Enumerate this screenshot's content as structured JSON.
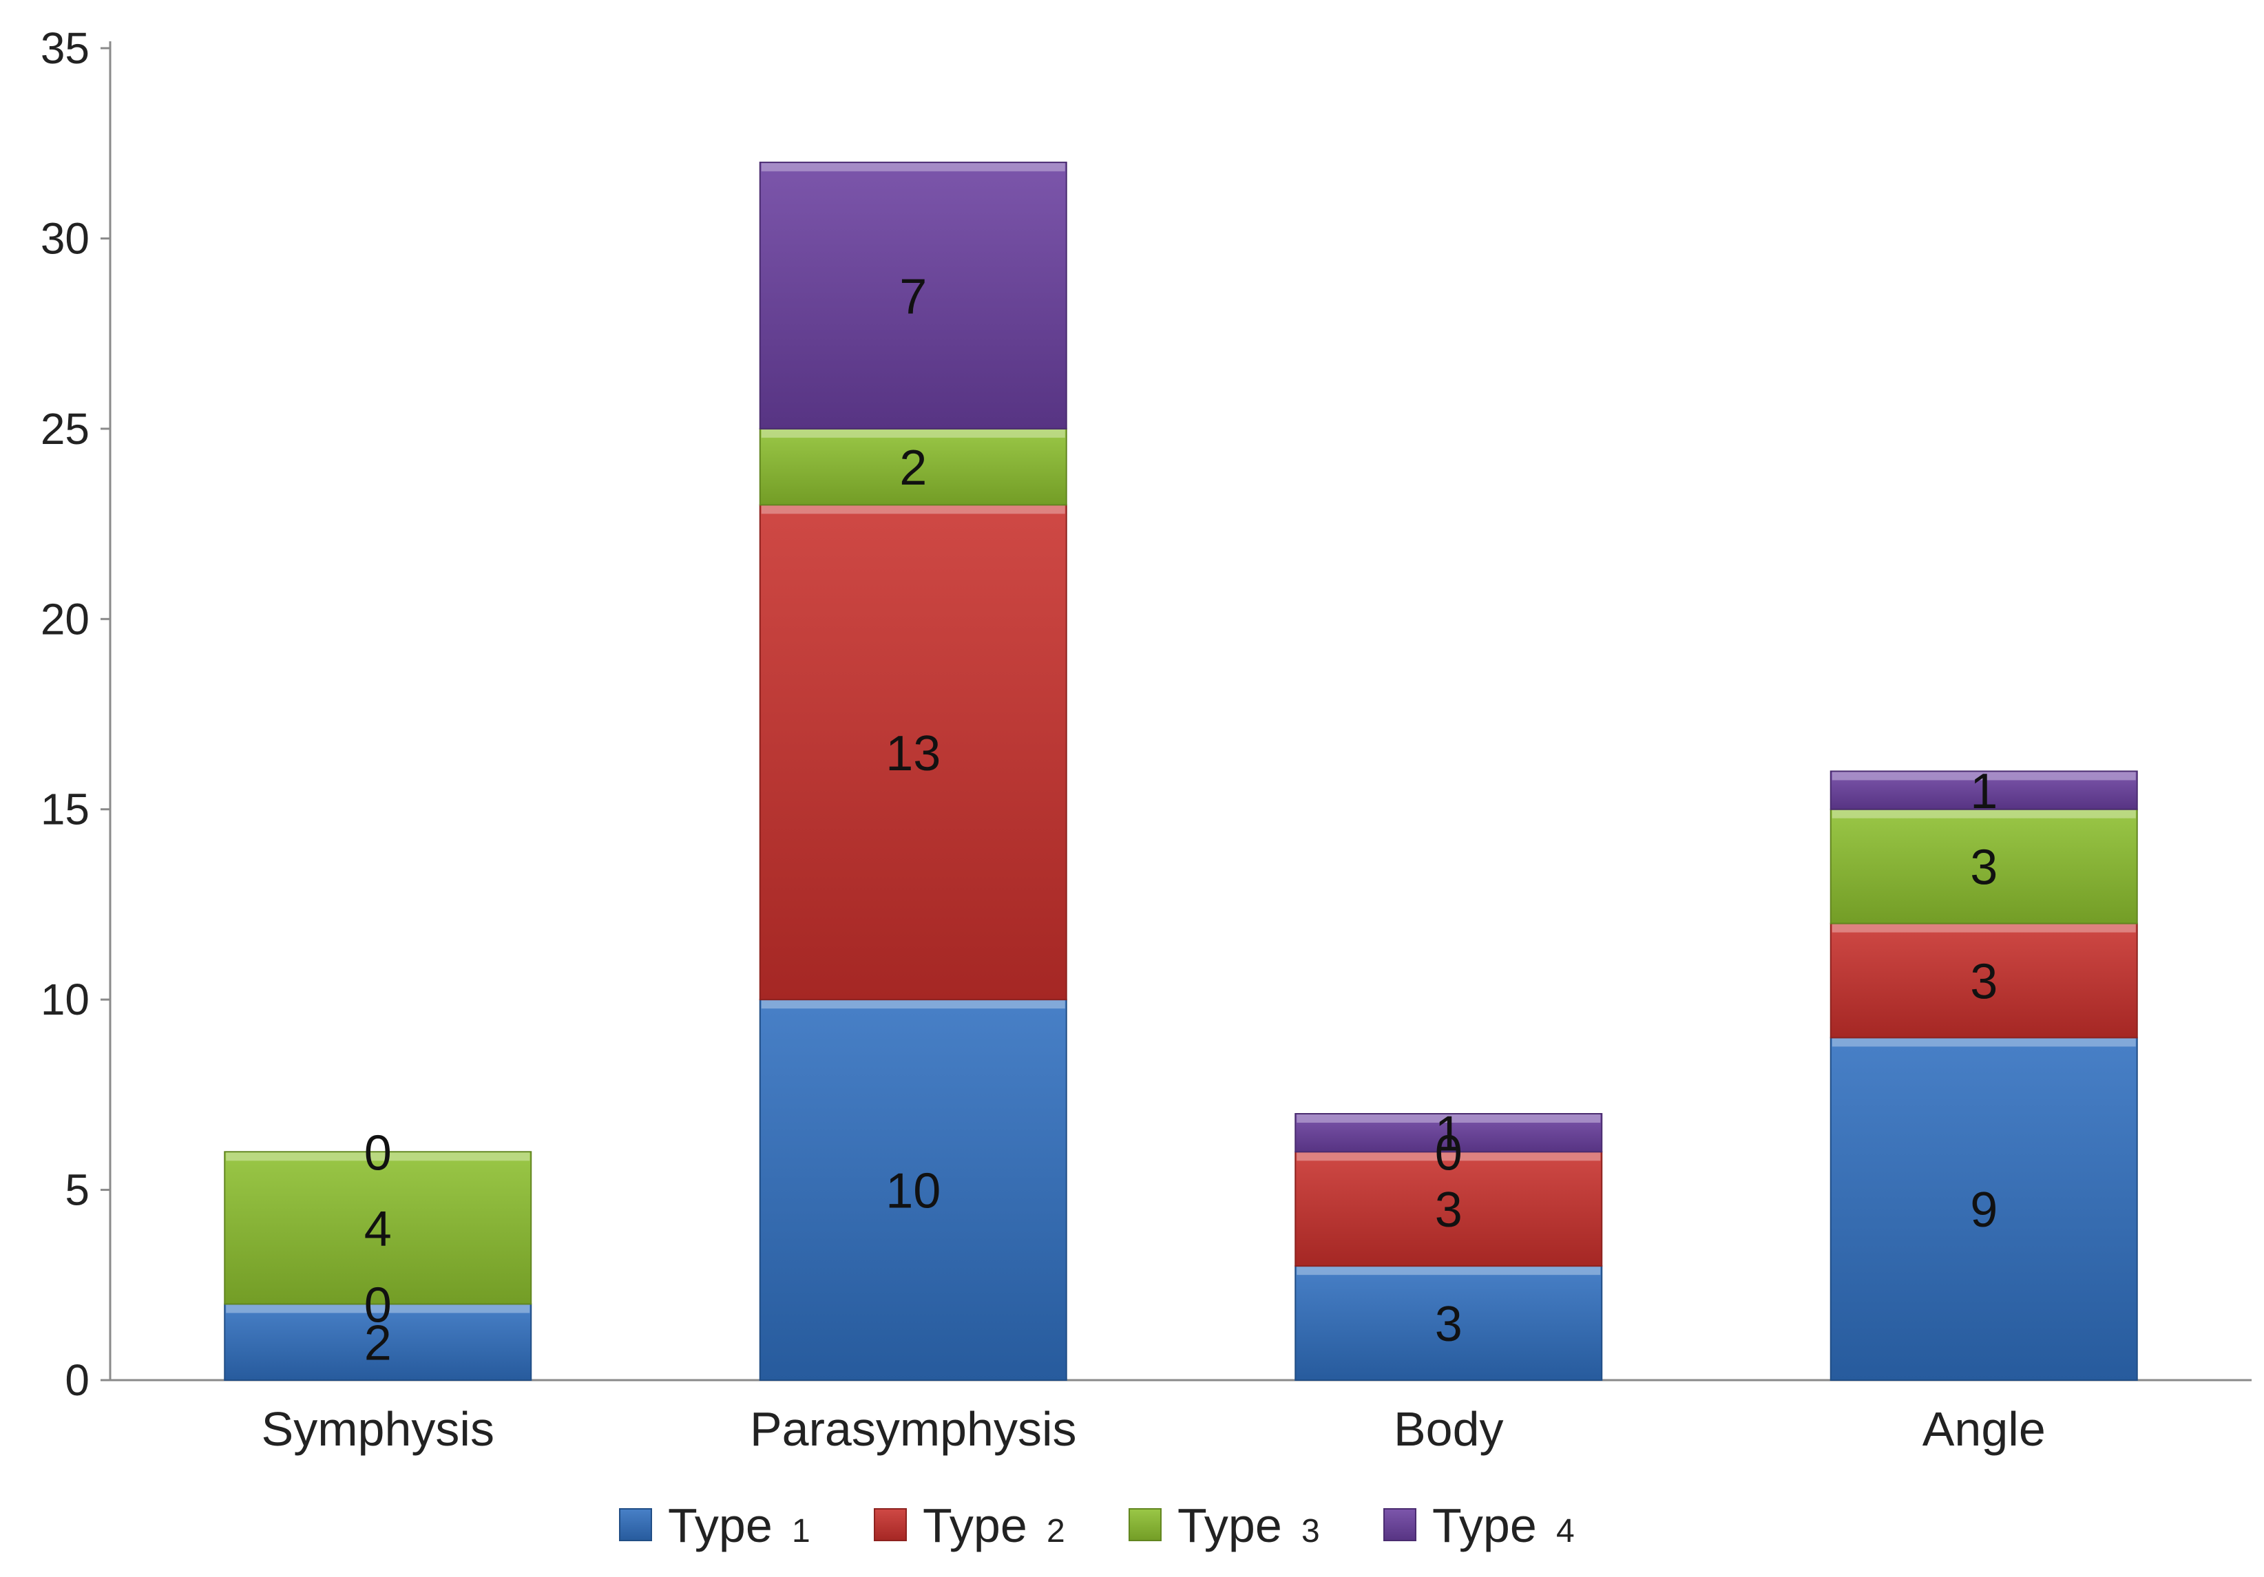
{
  "chart_data": {
    "type": "bar",
    "stacked": true,
    "categories": [
      "Symphysis",
      "Parasymphysis",
      "Body",
      "Angle"
    ],
    "series": [
      {
        "name": "Type 1",
        "values": [
          2,
          10,
          3,
          9
        ],
        "color": "#2f6fbf"
      },
      {
        "name": "Type 2",
        "values": [
          0,
          13,
          3,
          3
        ],
        "color": "#c9302c"
      },
      {
        "name": "Type 3",
        "values": [
          4,
          2,
          0,
          3
        ],
        "color": "#8cbf2e"
      },
      {
        "name": "Type 4",
        "values": [
          0,
          7,
          1,
          1
        ],
        "color": "#6a3fa0"
      }
    ],
    "legend": [
      {
        "word": "Type",
        "num": "1"
      },
      {
        "word": "Type",
        "num": "2"
      },
      {
        "word": "Type",
        "num": "3"
      },
      {
        "word": "Type",
        "num": "4"
      }
    ],
    "yticks": [
      "0",
      "5",
      "10",
      "15",
      "20",
      "25",
      "30",
      "35"
    ],
    "ylim": [
      0,
      35
    ],
    "grid": false,
    "legend_position": "bottom",
    "title": "",
    "xlabel": "",
    "ylabel": ""
  }
}
